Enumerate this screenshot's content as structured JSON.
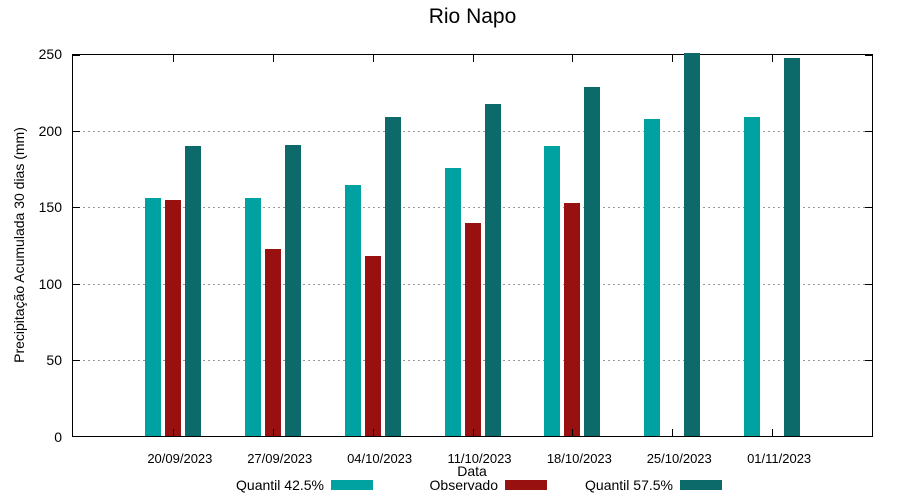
{
  "chart_data": {
    "type": "bar",
    "title": "Rio Napo",
    "xlabel": "Data",
    "ylabel": "Precipitação Acumulada 30 dias (mm)",
    "categories": [
      "20/09/2023",
      "27/09/2023",
      "04/10/2023",
      "11/10/2023",
      "18/10/2023",
      "25/10/2023",
      "01/11/2023"
    ],
    "series": [
      {
        "name": "Quantil 42.5%",
        "color": "#00a1a1",
        "values": [
          156,
          156,
          165,
          176,
          190,
          208,
          209
        ]
      },
      {
        "name": "Observado",
        "color": "#991010",
        "values": [
          155,
          123,
          118,
          140,
          153,
          null,
          null
        ]
      },
      {
        "name": "Quantil 57.5%",
        "color": "#0c6a6a",
        "values": [
          190,
          191,
          209,
          218,
          229,
          251,
          248
        ]
      }
    ],
    "ylim": [
      0,
      250
    ],
    "yticks": [
      0,
      50,
      100,
      150,
      200,
      250
    ],
    "grid": {
      "horizontal": true,
      "style": "dotted",
      "color": "#9a9a9a"
    },
    "legend_position": "bottom",
    "axis_color": "#000000",
    "background_color": "#ffffff"
  }
}
